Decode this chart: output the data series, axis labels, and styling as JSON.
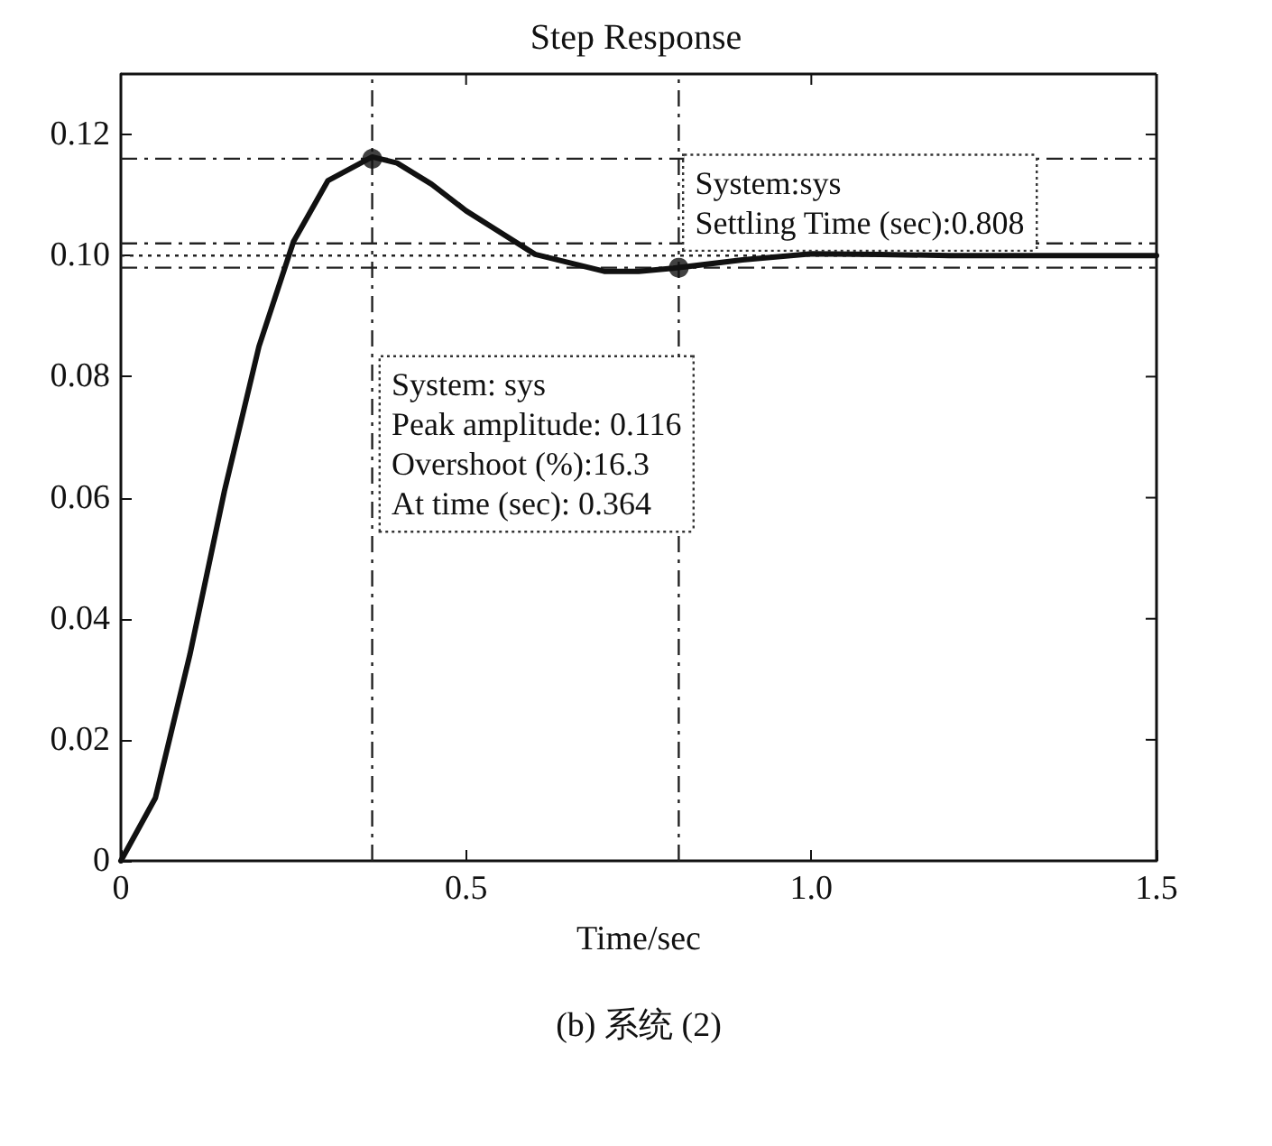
{
  "chart_data": {
    "type": "line",
    "title": "Step Response",
    "xlabel": "Time/sec",
    "x": [
      0,
      0.05,
      0.1,
      0.15,
      0.2,
      0.25,
      0.3,
      0.364,
      0.4,
      0.45,
      0.5,
      0.6,
      0.7,
      0.75,
      0.8,
      0.9,
      1.0,
      1.1,
      1.2,
      1.3,
      1.4,
      1.5
    ],
    "series": [
      {
        "color": "#111111",
        "marker": "none",
        "line_style": "solid",
        "values": [
          0,
          0.0104,
          0.0341,
          0.0611,
          0.085,
          0.1023,
          0.1124,
          0.1163,
          0.1153,
          0.1118,
          0.1074,
          0.1002,
          0.0974,
          0.0974,
          0.0979,
          0.0993,
          0.1003,
          0.1002,
          0.1,
          0.1,
          0.1,
          0.1
        ]
      },
      {
        "type": "scatter",
        "color": "#111111",
        "marker": "circle",
        "x": [
          0.364,
          0.808
        ],
        "values": [
          0.116,
          0.098
        ]
      }
    ],
    "xlim": [
      0,
      1.5
    ],
    "ylim": [
      0,
      0.13
    ],
    "xticks": [
      0,
      0.5,
      {
        "value": 1,
        "label": "1.0"
      },
      1.5
    ],
    "yticks": [
      0,
      0.02,
      0.04,
      0.06,
      0.08,
      {
        "value": 0.1,
        "label": "0.10"
      },
      0.12
    ],
    "grid": false,
    "ref_lines": [
      {
        "axis": "y",
        "value": 0.102,
        "line_style": "dashed"
      },
      {
        "axis": "y",
        "value": 0.1,
        "line_style": "dotted"
      },
      {
        "axis": "y",
        "value": 0.098,
        "line_style": "dashed"
      },
      {
        "axis": "y",
        "value": 0.116,
        "line_style": "dashed"
      },
      {
        "axis": "x",
        "value": 0.364,
        "line_style": "dashed"
      },
      {
        "axis": "x",
        "value": 0.808,
        "line_style": "dashed"
      }
    ],
    "annotations": [
      "System: sys\nPeak amplitude: 0.116\nOvershoot (%):16.3\nAt time (sec): 0.364",
      {
        "text": "System:sys\nSettling Time (sec):0.808",
        "x": 0.808,
        "y": 0.098
      },
      "(b) 系统 (2)"
    ]
  }
}
